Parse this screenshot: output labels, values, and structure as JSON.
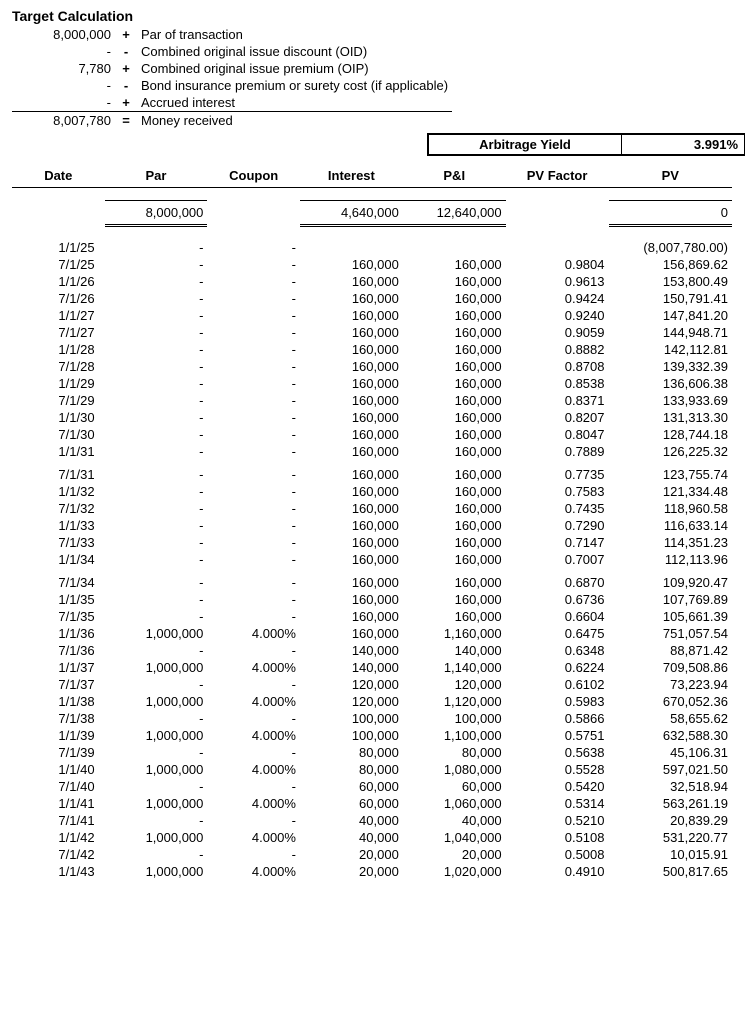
{
  "title": "Target Calculation",
  "target_calc": [
    {
      "value": "8,000,000",
      "op": "+",
      "desc": "Par of transaction"
    },
    {
      "value": "-",
      "op": "-",
      "desc": "Combined original issue discount (OID)"
    },
    {
      "value": "7,780",
      "op": "+",
      "desc": "Combined original issue premium (OIP)"
    },
    {
      "value": "-",
      "op": "-",
      "desc": "Bond insurance premium or surety cost (if applicable)"
    },
    {
      "value": "-",
      "op": "+",
      "desc": "Accrued interest"
    }
  ],
  "target_total": {
    "value": "8,007,780",
    "op": "=",
    "desc": "Money received"
  },
  "arb": {
    "label": "Arbitrage Yield",
    "value": "3.991%"
  },
  "headers": {
    "date": "Date",
    "par": "Par",
    "coupon": "Coupon",
    "interest": "Interest",
    "pi": "P&I",
    "pvf": "PV Factor",
    "pv": "PV"
  },
  "totals": {
    "par": "8,000,000",
    "interest": "4,640,000",
    "pi": "12,640,000",
    "pv": "0"
  },
  "rows": [
    {
      "date": "1/1/25",
      "par": "-",
      "coupon": "-",
      "interest": "",
      "pi": "",
      "pvf": "",
      "pv": "(8,007,780.00)"
    },
    {
      "date": "7/1/25",
      "par": "-",
      "coupon": "-",
      "interest": "160,000",
      "pi": "160,000",
      "pvf": "0.9804",
      "pv": "156,869.62"
    },
    {
      "date": "1/1/26",
      "par": "-",
      "coupon": "-",
      "interest": "160,000",
      "pi": "160,000",
      "pvf": "0.9613",
      "pv": "153,800.49"
    },
    {
      "date": "7/1/26",
      "par": "-",
      "coupon": "-",
      "interest": "160,000",
      "pi": "160,000",
      "pvf": "0.9424",
      "pv": "150,791.41"
    },
    {
      "date": "1/1/27",
      "par": "-",
      "coupon": "-",
      "interest": "160,000",
      "pi": "160,000",
      "pvf": "0.9240",
      "pv": "147,841.20"
    },
    {
      "date": "7/1/27",
      "par": "-",
      "coupon": "-",
      "interest": "160,000",
      "pi": "160,000",
      "pvf": "0.9059",
      "pv": "144,948.71"
    },
    {
      "date": "1/1/28",
      "par": "-",
      "coupon": "-",
      "interest": "160,000",
      "pi": "160,000",
      "pvf": "0.8882",
      "pv": "142,112.81"
    },
    {
      "date": "7/1/28",
      "par": "-",
      "coupon": "-",
      "interest": "160,000",
      "pi": "160,000",
      "pvf": "0.8708",
      "pv": "139,332.39"
    },
    {
      "date": "1/1/29",
      "par": "-",
      "coupon": "-",
      "interest": "160,000",
      "pi": "160,000",
      "pvf": "0.8538",
      "pv": "136,606.38"
    },
    {
      "date": "7/1/29",
      "par": "-",
      "coupon": "-",
      "interest": "160,000",
      "pi": "160,000",
      "pvf": "0.8371",
      "pv": "133,933.69"
    },
    {
      "date": "1/1/30",
      "par": "-",
      "coupon": "-",
      "interest": "160,000",
      "pi": "160,000",
      "pvf": "0.8207",
      "pv": "131,313.30"
    },
    {
      "date": "7/1/30",
      "par": "-",
      "coupon": "-",
      "interest": "160,000",
      "pi": "160,000",
      "pvf": "0.8047",
      "pv": "128,744.18"
    },
    {
      "date": "1/1/31",
      "par": "-",
      "coupon": "-",
      "interest": "160,000",
      "pi": "160,000",
      "pvf": "0.7889",
      "pv": "126,225.32"
    },
    {
      "date": "7/1/31",
      "par": "-",
      "coupon": "-",
      "interest": "160,000",
      "pi": "160,000",
      "pvf": "0.7735",
      "pv": "123,755.74"
    },
    {
      "date": "1/1/32",
      "par": "-",
      "coupon": "-",
      "interest": "160,000",
      "pi": "160,000",
      "pvf": "0.7583",
      "pv": "121,334.48"
    },
    {
      "date": "7/1/32",
      "par": "-",
      "coupon": "-",
      "interest": "160,000",
      "pi": "160,000",
      "pvf": "0.7435",
      "pv": "118,960.58"
    },
    {
      "date": "1/1/33",
      "par": "-",
      "coupon": "-",
      "interest": "160,000",
      "pi": "160,000",
      "pvf": "0.7290",
      "pv": "116,633.14"
    },
    {
      "date": "7/1/33",
      "par": "-",
      "coupon": "-",
      "interest": "160,000",
      "pi": "160,000",
      "pvf": "0.7147",
      "pv": "114,351.23"
    },
    {
      "date": "1/1/34",
      "par": "-",
      "coupon": "-",
      "interest": "160,000",
      "pi": "160,000",
      "pvf": "0.7007",
      "pv": "112,113.96"
    },
    {
      "date": "7/1/34",
      "par": "-",
      "coupon": "-",
      "interest": "160,000",
      "pi": "160,000",
      "pvf": "0.6870",
      "pv": "109,920.47"
    },
    {
      "date": "1/1/35",
      "par": "-",
      "coupon": "-",
      "interest": "160,000",
      "pi": "160,000",
      "pvf": "0.6736",
      "pv": "107,769.89"
    },
    {
      "date": "7/1/35",
      "par": "-",
      "coupon": "-",
      "interest": "160,000",
      "pi": "160,000",
      "pvf": "0.6604",
      "pv": "105,661.39"
    },
    {
      "date": "1/1/36",
      "par": "1,000,000",
      "coupon": "4.000%",
      "interest": "160,000",
      "pi": "1,160,000",
      "pvf": "0.6475",
      "pv": "751,057.54"
    },
    {
      "date": "7/1/36",
      "par": "-",
      "coupon": "-",
      "interest": "140,000",
      "pi": "140,000",
      "pvf": "0.6348",
      "pv": "88,871.42"
    },
    {
      "date": "1/1/37",
      "par": "1,000,000",
      "coupon": "4.000%",
      "interest": "140,000",
      "pi": "1,140,000",
      "pvf": "0.6224",
      "pv": "709,508.86"
    },
    {
      "date": "7/1/37",
      "par": "-",
      "coupon": "-",
      "interest": "120,000",
      "pi": "120,000",
      "pvf": "0.6102",
      "pv": "73,223.94"
    },
    {
      "date": "1/1/38",
      "par": "1,000,000",
      "coupon": "4.000%",
      "interest": "120,000",
      "pi": "1,120,000",
      "pvf": "0.5983",
      "pv": "670,052.36"
    },
    {
      "date": "7/1/38",
      "par": "-",
      "coupon": "-",
      "interest": "100,000",
      "pi": "100,000",
      "pvf": "0.5866",
      "pv": "58,655.62"
    },
    {
      "date": "1/1/39",
      "par": "1,000,000",
      "coupon": "4.000%",
      "interest": "100,000",
      "pi": "1,100,000",
      "pvf": "0.5751",
      "pv": "632,588.30"
    },
    {
      "date": "7/1/39",
      "par": "-",
      "coupon": "-",
      "interest": "80,000",
      "pi": "80,000",
      "pvf": "0.5638",
      "pv": "45,106.31"
    },
    {
      "date": "1/1/40",
      "par": "1,000,000",
      "coupon": "4.000%",
      "interest": "80,000",
      "pi": "1,080,000",
      "pvf": "0.5528",
      "pv": "597,021.50"
    },
    {
      "date": "7/1/40",
      "par": "-",
      "coupon": "-",
      "interest": "60,000",
      "pi": "60,000",
      "pvf": "0.5420",
      "pv": "32,518.94"
    },
    {
      "date": "1/1/41",
      "par": "1,000,000",
      "coupon": "4.000%",
      "interest": "60,000",
      "pi": "1,060,000",
      "pvf": "0.5314",
      "pv": "563,261.19"
    },
    {
      "date": "7/1/41",
      "par": "-",
      "coupon": "-",
      "interest": "40,000",
      "pi": "40,000",
      "pvf": "0.5210",
      "pv": "20,839.29"
    },
    {
      "date": "1/1/42",
      "par": "1,000,000",
      "coupon": "4.000%",
      "interest": "40,000",
      "pi": "1,040,000",
      "pvf": "0.5108",
      "pv": "531,220.77"
    },
    {
      "date": "7/1/42",
      "par": "-",
      "coupon": "-",
      "interest": "20,000",
      "pi": "20,000",
      "pvf": "0.5008",
      "pv": "10,015.91"
    },
    {
      "date": "1/1/43",
      "par": "1,000,000",
      "coupon": "4.000%",
      "interest": "20,000",
      "pi": "1,020,000",
      "pvf": "0.4910",
      "pv": "500,817.65"
    }
  ],
  "gap_after": [
    12,
    18
  ]
}
